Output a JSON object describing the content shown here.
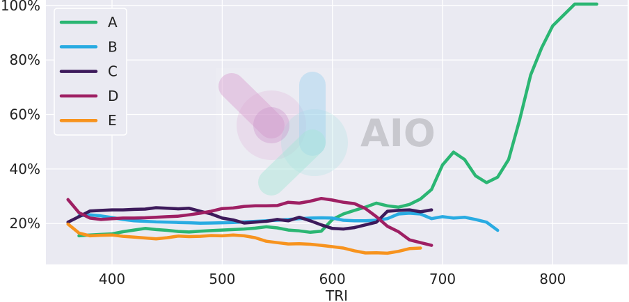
{
  "chart_data": {
    "type": "line",
    "xlabel": "TRI",
    "ylabel": "",
    "xlim": [
      340,
      868
    ],
    "ylim": [
      5,
      102
    ],
    "x_ticks": [
      400,
      500,
      600,
      700,
      800
    ],
    "y_ticks": [
      20,
      40,
      60,
      80,
      100
    ],
    "y_tick_labels": [
      "20%",
      "40%",
      "60%",
      "80%",
      "100%"
    ],
    "grid": true,
    "legend_position": "top-left",
    "watermark": "AIO",
    "series": [
      {
        "name": "A",
        "color": "#2bb673",
        "x": [
          370,
          380,
          390,
          400,
          410,
          420,
          430,
          440,
          450,
          460,
          470,
          480,
          490,
          500,
          510,
          520,
          530,
          540,
          550,
          560,
          570,
          580,
          590,
          600,
          610,
          620,
          630,
          640,
          650,
          660,
          670,
          680,
          690,
          700,
          710,
          720,
          730,
          740,
          750,
          760,
          770,
          780,
          790,
          800,
          810,
          820,
          830,
          840
        ],
        "y": [
          15.5,
          15.8,
          16,
          16.2,
          17,
          17.6,
          18.2,
          17.8,
          17.5,
          17.1,
          16.9,
          17.2,
          17.4,
          17.6,
          17.8,
          18.0,
          18.3,
          18.8,
          18.4,
          17.6,
          17.3,
          16.8,
          17.2,
          21.5,
          23.5,
          24.8,
          26.0,
          27.5,
          26.5,
          26.0,
          27.0,
          29.0,
          32.5,
          41.5,
          46.2,
          43.5,
          37.5,
          35.0,
          37.0,
          43.5,
          58.0,
          74.5,
          84.5,
          92.5,
          96.5,
          100.5,
          100.5,
          100.5
        ]
      },
      {
        "name": "B",
        "color": "#29abe2",
        "x": [
          370,
          380,
          390,
          400,
          410,
          420,
          430,
          440,
          450,
          460,
          470,
          480,
          490,
          500,
          510,
          520,
          530,
          540,
          550,
          560,
          570,
          580,
          590,
          600,
          610,
          620,
          630,
          640,
          650,
          660,
          670,
          680,
          690,
          700,
          710,
          720,
          730,
          740,
          750
        ],
        "y": [
          22.8,
          23.2,
          22.8,
          22.2,
          21.5,
          21.0,
          20.8,
          20.6,
          20.5,
          20.4,
          20.3,
          20.1,
          20.2,
          20.3,
          20.4,
          20.6,
          20.8,
          21.0,
          21.2,
          21.5,
          21.8,
          22.0,
          22.1,
          22.0,
          21.2,
          21.0,
          21.0,
          21.2,
          21.8,
          23.5,
          23.8,
          23.5,
          21.8,
          22.5,
          22.0,
          22.3,
          21.5,
          20.5,
          17.5
        ]
      },
      {
        "name": "C",
        "color": "#3d1a5b",
        "x": [
          360,
          370,
          380,
          390,
          400,
          410,
          420,
          430,
          440,
          450,
          460,
          470,
          480,
          490,
          500,
          510,
          520,
          530,
          540,
          550,
          560,
          570,
          580,
          590,
          600,
          610,
          620,
          630,
          640,
          650,
          660,
          670,
          680,
          690
        ],
        "y": [
          20.5,
          22.5,
          24.6,
          24.8,
          25.0,
          25.0,
          25.2,
          25.3,
          25.8,
          25.6,
          25.4,
          25.6,
          24.5,
          23.5,
          22.0,
          21.3,
          20.2,
          20.5,
          20.8,
          21.5,
          21.0,
          22.3,
          21.0,
          19.5,
          18.2,
          18.0,
          18.5,
          19.5,
          20.5,
          24.5,
          24.8,
          25.0,
          24.3,
          25.0
        ]
      },
      {
        "name": "D",
        "color": "#9e1f63",
        "x": [
          360,
          370,
          380,
          390,
          400,
          410,
          420,
          430,
          440,
          450,
          460,
          470,
          480,
          490,
          500,
          510,
          520,
          530,
          540,
          550,
          560,
          570,
          580,
          590,
          600,
          610,
          620,
          630,
          640,
          650,
          660,
          670,
          680,
          690
        ],
        "y": [
          28.8,
          24.0,
          22.0,
          21.5,
          21.8,
          22.0,
          22.0,
          22.1,
          22.3,
          22.5,
          22.7,
          23.2,
          23.8,
          24.5,
          25.5,
          25.7,
          26.3,
          26.5,
          26.5,
          26.6,
          27.8,
          27.5,
          28.2,
          29.2,
          28.6,
          27.8,
          27.3,
          25.5,
          22.5,
          19.0,
          17.0,
          14.0,
          13.0,
          12.0
        ]
      },
      {
        "name": "E",
        "color": "#f7931e",
        "x": [
          360,
          370,
          380,
          390,
          400,
          410,
          420,
          430,
          440,
          450,
          460,
          470,
          480,
          490,
          500,
          510,
          520,
          530,
          540,
          550,
          560,
          570,
          580,
          590,
          600,
          610,
          620,
          630,
          640,
          650,
          660,
          670,
          680
        ],
        "y": [
          19.8,
          16.5,
          15.5,
          15.7,
          15.8,
          15.3,
          15.0,
          14.7,
          14.4,
          14.8,
          15.4,
          15.2,
          15.3,
          15.6,
          15.5,
          15.8,
          15.5,
          14.8,
          13.5,
          13.0,
          12.5,
          12.6,
          12.4,
          12.0,
          11.5,
          11.0,
          10.0,
          9.2,
          9.3,
          9.1,
          9.8,
          10.8,
          11.0
        ]
      }
    ]
  }
}
